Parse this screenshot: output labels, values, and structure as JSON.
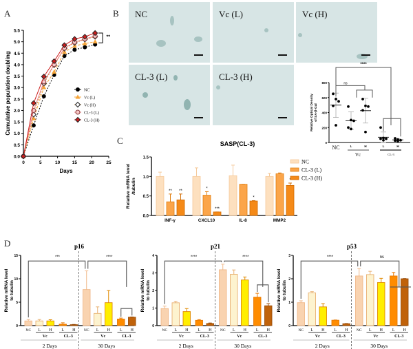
{
  "panels": {
    "A": "A",
    "B": "B",
    "C": "C",
    "D": "D"
  },
  "micrographs": [
    {
      "label": "NC"
    },
    {
      "label": "Vc (L)"
    },
    {
      "label": "Vc (H)"
    },
    {
      "label": "CL-3 (L)"
    },
    {
      "label": "CL-3 (H)"
    }
  ],
  "colors": {
    "NC": "#f9d3b0",
    "VcL": "#fdf3cf",
    "VcH": "#ffee00",
    "CL3L": "#ff8c00",
    "CL3H": "#c0620a",
    "NC_edge": "#f0b889",
    "VcL_edge": "#e8b070",
    "VcH_edge": "#e08a00",
    "CL3L_edge": "#e87800",
    "CL3H_edge": "#9a4d08",
    "C_NC": "#fde0bf",
    "C_L": "#fba54a",
    "C_H": "#f58a18"
  },
  "chart_data": [
    {
      "id": "A",
      "type": "line",
      "title": "",
      "xlabel": "Days",
      "ylabel": "Cumulative population doubling",
      "xlim": [
        0,
        25
      ],
      "ylim": [
        0,
        5.5
      ],
      "xticks": [
        0,
        5,
        10,
        15,
        20,
        25
      ],
      "yticks": [
        "0.0",
        "0.5",
        "1.0",
        "1.5",
        "2.0",
        "2.5",
        "3.0",
        "3.5",
        "4.0",
        "4.5",
        "5.0",
        "5.5"
      ],
      "x": [
        0,
        3,
        6,
        9,
        12,
        15,
        18,
        21
      ],
      "series": [
        {
          "name": "NC",
          "values": [
            0,
            1.35,
            2.62,
            3.55,
            4.38,
            4.65,
            4.76,
            4.88
          ],
          "color": "#000000",
          "marker": "circle-filled",
          "dash": "2,2"
        },
        {
          "name": "Vc (L)",
          "values": [
            0,
            1.65,
            3.0,
            3.68,
            4.55,
            4.82,
            4.92,
            5.0
          ],
          "color": "#f6a53a",
          "marker": "triangle",
          "dash": "4,2"
        },
        {
          "name": "Vc (H)",
          "values": [
            0,
            1.82,
            3.18,
            3.98,
            4.7,
            4.95,
            5.1,
            5.22
          ],
          "color": "#c58a3a",
          "marker": "diamond-open",
          "dash": "2,2"
        },
        {
          "name": "CL-3 (L)",
          "values": [
            0,
            2.0,
            3.25,
            4.0,
            4.72,
            4.98,
            5.12,
            5.25
          ],
          "color": "#f08080",
          "marker": "circle-open",
          "dash": ""
        },
        {
          "name": "CL-3 (H)",
          "values": [
            0,
            2.32,
            3.48,
            4.15,
            4.85,
            5.12,
            5.22,
            5.38
          ],
          "color": "#cc1f1f",
          "marker": "diamond-filled",
          "dash": ""
        }
      ],
      "annotation": "**",
      "legend": "center-right"
    },
    {
      "id": "B-quant",
      "type": "scatter",
      "ylabel": "Relative Optical Density of SA-β-Gal",
      "ylim": [
        0,
        800
      ],
      "yticks": [
        "0",
        "200",
        "400",
        "600",
        "800"
      ],
      "categories": [
        "NC",
        "L",
        "H",
        "L",
        "H"
      ],
      "group_labels": [
        {
          "label": "Vc",
          "covers": [
            1,
            2
          ]
        },
        {
          "label": "CL-3",
          "covers": [
            3,
            4
          ]
        }
      ],
      "points": [
        [
          650,
          580,
          550,
          490,
          230
        ],
        [
          480,
          300,
          290,
          200,
          180
        ],
        [
          580,
          490,
          480,
          430,
          140
        ],
        [
          200,
          60,
          50,
          50,
          30
        ],
        [
          55,
          40,
          30,
          25,
          20
        ]
      ],
      "means": [
        500,
        290,
        425,
        70,
        35
      ],
      "errors": [
        [
          335,
          660
        ],
        [
          175,
          410
        ],
        [
          260,
          590
        ],
        [
          0,
          140
        ],
        [
          20,
          50
        ]
      ],
      "annotations": {
        "top": "****",
        "inner": "ns"
      }
    },
    {
      "id": "C",
      "type": "bar",
      "title": "SASP(CL-3)",
      "ylabel": "Relative mRNA level /tubulin",
      "ylim": [
        0,
        1.5
      ],
      "yticks": [
        "0.0",
        "0.5",
        "1.0",
        "1.5"
      ],
      "categories": [
        "INF-γ",
        "CXCL10",
        "IL-8",
        "MMP2"
      ],
      "series": [
        {
          "name": "NC",
          "values": [
            1.0,
            1.0,
            1.02,
            1.0
          ],
          "errors": [
            0.11,
            0.22,
            0.27,
            0.08
          ],
          "sig": [
            "",
            "",
            "",
            ""
          ]
        },
        {
          "name": "CL-3 (L)",
          "values": [
            0.35,
            0.52,
            0.8,
            1.07
          ],
          "errors": [
            0.2,
            0.09,
            0.0,
            0.02
          ],
          "sig": [
            "**",
            "*",
            "",
            ""
          ]
        },
        {
          "name": "CL-3 (H)",
          "values": [
            0.4,
            0.09,
            0.37,
            0.77
          ],
          "errors": [
            0.15,
            0.0,
            0.01,
            0.06
          ],
          "sig": [
            "**",
            "***",
            "*",
            "*"
          ]
        }
      ],
      "legend": "top-right"
    },
    {
      "id": "D-p16",
      "type": "bar",
      "title": "p16",
      "ylabel": "Relative mRNA level to tubulin",
      "ylim": [
        0,
        15
      ],
      "yticks": [
        "0",
        "5",
        "10",
        "15"
      ],
      "categories": [
        "NC",
        "L",
        "H",
        "L",
        "H",
        "NC",
        "L",
        "H",
        "L",
        "H"
      ],
      "values": [
        1.0,
        1.0,
        1.0,
        0.3,
        0.2,
        7.7,
        2.6,
        4.9,
        1.4,
        1.8
      ],
      "errors": [
        0.3,
        0.3,
        0.25,
        0.3,
        0.05,
        4.0,
        1.4,
        2.6,
        0.2,
        0.05
      ],
      "groups": [
        "2 Days",
        "30 Days"
      ],
      "annotations": [
        "***",
        "****"
      ]
    },
    {
      "id": "D-p21",
      "type": "bar",
      "title": "p21",
      "ylabel": "Relative mRNA level to tubulin",
      "ylim": [
        0,
        4
      ],
      "yticks": [
        "0",
        "1",
        "2",
        "3",
        "4"
      ],
      "categories": [
        "NC",
        "L",
        "H",
        "L",
        "H",
        "NC",
        "L",
        "H",
        "L",
        "H"
      ],
      "values": [
        0.97,
        1.3,
        0.8,
        0.3,
        0.12,
        3.18,
        2.92,
        2.6,
        1.62,
        1.13
      ],
      "errors": [
        0.14,
        0.08,
        0.17,
        0.04,
        0.03,
        0.32,
        0.25,
        0.17,
        0.22,
        0.12
      ],
      "groups": [
        "2 Days",
        "30 Days"
      ],
      "annotations": [
        "****",
        "****"
      ]
    },
    {
      "id": "D-p53",
      "type": "bar",
      "title": "p53",
      "ylabel": "Relative mRNA level to tubulin",
      "ylim": [
        0,
        3
      ],
      "yticks": [
        "0",
        "1",
        "2",
        "3"
      ],
      "categories": [
        "NC",
        "L",
        "H",
        "L",
        "H",
        "NC",
        "L",
        "H",
        "L",
        "H"
      ],
      "values": [
        0.98,
        1.4,
        0.8,
        0.23,
        0.08,
        2.12,
        2.18,
        1.84,
        2.12,
        2.0
      ],
      "errors": [
        0.08,
        0.05,
        0.14,
        0.01,
        0.01,
        0.32,
        0.14,
        0.18,
        0.15,
        0.01
      ],
      "groups": [
        "2 Days",
        "30 Days"
      ],
      "annotations": [
        "****",
        "ns"
      ]
    }
  ],
  "labels": {
    "vc": "Vc",
    "cl3": "CL-3",
    "days2": "2 Days",
    "days30": "30 Days"
  }
}
